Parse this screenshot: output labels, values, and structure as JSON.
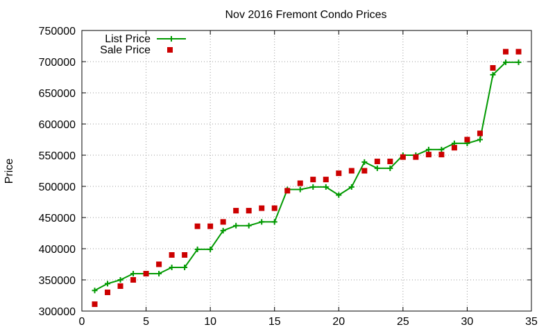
{
  "chart_data": {
    "type": "line",
    "title": "Nov 2016 Fremont Condo Prices",
    "xlabel": "",
    "ylabel": "Price",
    "xlim": [
      0,
      35
    ],
    "ylim": [
      300000,
      750000
    ],
    "x_ticks": [
      0,
      5,
      10,
      15,
      20,
      25,
      30,
      35
    ],
    "y_ticks": [
      300000,
      350000,
      400000,
      450000,
      500000,
      550000,
      600000,
      650000,
      700000,
      750000
    ],
    "grid": true,
    "grid_style": "dotted",
    "legend_position": "top-left",
    "x": [
      1,
      2,
      3,
      4,
      5,
      6,
      7,
      8,
      9,
      10,
      11,
      12,
      13,
      14,
      15,
      16,
      17,
      18,
      19,
      20,
      21,
      22,
      23,
      24,
      25,
      26,
      27,
      28,
      29,
      30,
      31,
      32,
      33,
      34
    ],
    "series": [
      {
        "name": "List Price",
        "style": "line-plus",
        "color": "#009900",
        "values": [
          333000,
          344000,
          350000,
          360000,
          360000,
          360000,
          370000,
          370000,
          399000,
          399000,
          429000,
          437000,
          437000,
          443000,
          443000,
          495000,
          495000,
          499000,
          499000,
          486000,
          499000,
          539000,
          529000,
          529000,
          550000,
          550000,
          559000,
          559000,
          569000,
          569000,
          575000,
          679000,
          699000,
          699000
        ]
      },
      {
        "name": "Sale Price",
        "style": "square-marker",
        "color": "#cc0000",
        "values": [
          311000,
          330000,
          340000,
          350000,
          360000,
          375000,
          390000,
          390000,
          436000,
          436000,
          443000,
          461000,
          461000,
          465000,
          465000,
          493000,
          505000,
          511000,
          511000,
          521000,
          525000,
          525000,
          540000,
          540000,
          547000,
          547000,
          551000,
          551000,
          562000,
          575000,
          585000,
          690000,
          716000,
          716000
        ]
      }
    ]
  }
}
